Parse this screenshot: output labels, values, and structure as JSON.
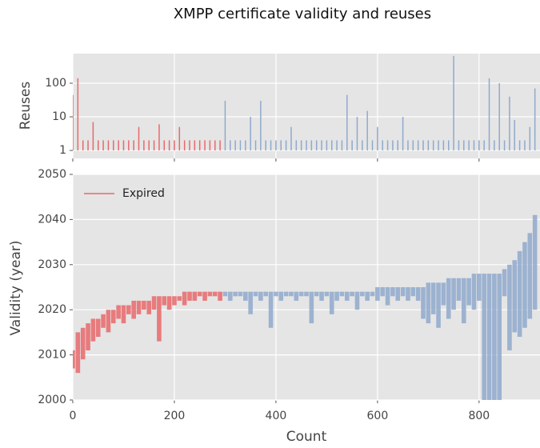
{
  "chart_data": [
    {
      "type": "spike",
      "title": "XMPP certificate validity and reuses",
      "ylabel": "Reuses",
      "log": true,
      "xlim": [
        0,
        920
      ],
      "ylim": [
        0.58,
        760
      ],
      "yticks": [
        1,
        10,
        100
      ],
      "grid": true,
      "series": [
        {
          "color": "#e8696b",
          "x": [
            0,
            10,
            20,
            30,
            40,
            50,
            60,
            70,
            80,
            90,
            100,
            110,
            120,
            130,
            140,
            150,
            160,
            170,
            180,
            190,
            200,
            210,
            220,
            230,
            240,
            250,
            260,
            270,
            280,
            290
          ],
          "values": [
            45,
            140,
            2,
            2,
            7,
            2,
            2,
            2,
            2,
            2,
            2,
            2,
            2,
            5,
            2,
            2,
            2,
            6,
            2,
            2,
            2,
            5,
            2,
            2,
            2,
            2,
            2,
            2,
            2,
            2
          ]
        },
        {
          "color": "#8fa9cc",
          "x": [
            300,
            310,
            320,
            330,
            340,
            350,
            360,
            370,
            380,
            390,
            400,
            410,
            420,
            430,
            440,
            450,
            460,
            470,
            480,
            490,
            500,
            510,
            520,
            530,
            540,
            550,
            560,
            570,
            580,
            590,
            600,
            610,
            620,
            630,
            640,
            650,
            660,
            670,
            680,
            690,
            700,
            710,
            720,
            730,
            740,
            750,
            760,
            770,
            780,
            790,
            800,
            810,
            820,
            830,
            840,
            850,
            860,
            870,
            880,
            890,
            900,
            910
          ],
          "values": [
            30,
            2,
            2,
            2,
            2,
            10,
            2,
            30,
            2,
            2,
            2,
            2,
            2,
            5,
            2,
            2,
            2,
            2,
            2,
            2,
            2,
            2,
            2,
            2,
            45,
            2,
            10,
            2,
            15,
            2,
            5,
            2,
            2,
            2,
            2,
            10,
            2,
            2,
            2,
            2,
            2,
            2,
            2,
            2,
            2,
            650,
            2,
            2,
            2,
            2,
            2,
            2,
            140,
            2,
            100,
            2,
            40,
            8,
            2,
            2,
            5,
            70
          ]
        }
      ]
    },
    {
      "type": "range",
      "xlabel": "Count",
      "ylabel": "Validity (year)",
      "xlim": [
        0,
        920
      ],
      "ylim": [
        2000,
        2050
      ],
      "xticks": [
        0,
        200,
        400,
        600,
        800
      ],
      "yticks": [
        2000,
        2010,
        2020,
        2030,
        2040,
        2050
      ],
      "grid": true,
      "legend": "upper left",
      "series": [
        {
          "name": "Expired",
          "color": "#e8696b",
          "x": [
            0,
            10,
            20,
            30,
            40,
            50,
            60,
            70,
            80,
            90,
            100,
            110,
            120,
            130,
            140,
            150,
            160,
            170,
            180,
            190,
            200,
            210,
            220,
            230,
            240,
            250,
            260,
            270,
            280,
            290
          ],
          "low": [
            2007,
            2006,
            2009,
            2011,
            2013,
            2014,
            2016,
            2015,
            2017,
            2018,
            2017,
            2019,
            2018,
            2019,
            2020,
            2019,
            2020,
            2013,
            2021,
            2020,
            2021,
            2022,
            2021,
            2022,
            2022,
            2023,
            2022,
            2023,
            2023,
            2022
          ],
          "high": [
            2011,
            2015,
            2016,
            2017,
            2018,
            2018,
            2019,
            2020,
            2020,
            2021,
            2021,
            2021,
            2022,
            2022,
            2022,
            2022,
            2023,
            2023,
            2023,
            2023,
            2023,
            2023,
            2024,
            2024,
            2024,
            2024,
            2024,
            2024,
            2024,
            2024
          ]
        },
        {
          "color": "#8fa9cc",
          "x": [
            300,
            310,
            320,
            330,
            340,
            350,
            360,
            370,
            380,
            390,
            400,
            410,
            420,
            430,
            440,
            450,
            460,
            470,
            480,
            490,
            500,
            510,
            520,
            530,
            540,
            550,
            560,
            570,
            580,
            590,
            600,
            610,
            620,
            630,
            640,
            650,
            660,
            670,
            680,
            690,
            700,
            710,
            720,
            730,
            740,
            750,
            760,
            770,
            780,
            790,
            800,
            810,
            820,
            830,
            840,
            850,
            860,
            870,
            880,
            890,
            900,
            910
          ],
          "low": [
            2023,
            2022,
            2023,
            2023,
            2022,
            2019,
            2023,
            2022,
            2023,
            2016,
            2023,
            2022,
            2023,
            2023,
            2022,
            2023,
            2023,
            2017,
            2023,
            2022,
            2023,
            2019,
            2022,
            2023,
            2022,
            2023,
            2020,
            2023,
            2022,
            2023,
            2022,
            2023,
            2021,
            2023,
            2022,
            2023,
            2022,
            2023,
            2022,
            2018,
            2017,
            2019,
            2016,
            2021,
            2018,
            2020,
            2022,
            2017,
            2021,
            2020,
            2022,
            1998,
            1998,
            1998,
            1998,
            2023,
            2011,
            2015,
            2014,
            2016,
            2018,
            2020
          ],
          "high": [
            2024,
            2024,
            2024,
            2024,
            2024,
            2024,
            2024,
            2024,
            2024,
            2024,
            2024,
            2024,
            2024,
            2024,
            2024,
            2024,
            2024,
            2024,
            2024,
            2024,
            2024,
            2024,
            2024,
            2024,
            2024,
            2024,
            2024,
            2024,
            2024,
            2024,
            2025,
            2025,
            2025,
            2025,
            2025,
            2025,
            2025,
            2025,
            2025,
            2025,
            2026,
            2026,
            2026,
            2026,
            2027,
            2027,
            2027,
            2027,
            2027,
            2028,
            2028,
            2028,
            2028,
            2028,
            2028,
            2029,
            2030,
            2031,
            2033,
            2035,
            2037,
            2041
          ]
        }
      ]
    }
  ]
}
